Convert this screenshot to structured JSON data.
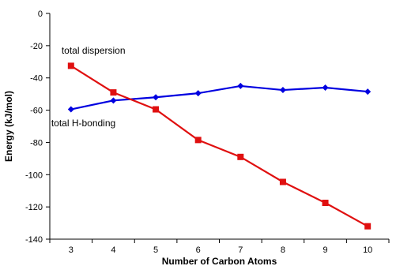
{
  "chart_data": {
    "type": "line",
    "xlabel": "Number of Carbon Atoms",
    "ylabel": "Energy (kJ/mol)",
    "x": [
      3,
      4,
      5,
      6,
      7,
      8,
      9,
      10
    ],
    "xlim": [
      2.5,
      10.5
    ],
    "ylim": [
      -140,
      0
    ],
    "yticks": [
      0,
      -20,
      -40,
      -60,
      -80,
      -100,
      -120,
      -140
    ],
    "grid": false,
    "legend": "none",
    "series": [
      {
        "name": "total H-bonding",
        "color": "#0000e0",
        "marker": "diamond",
        "values": [
          -59.5,
          -54,
          -52,
          -49.5,
          -45,
          -47.5,
          -46,
          -48.5
        ]
      },
      {
        "name": "total dispersion",
        "color": "#e01010",
        "marker": "square",
        "values": [
          -32.5,
          -49,
          -59.5,
          -78.5,
          -89,
          -104.5,
          -117.5,
          -132
        ]
      }
    ],
    "annotations": [
      {
        "text": "total dispersion",
        "series": 1
      },
      {
        "text": "total H-bonding",
        "series": 0
      }
    ]
  }
}
